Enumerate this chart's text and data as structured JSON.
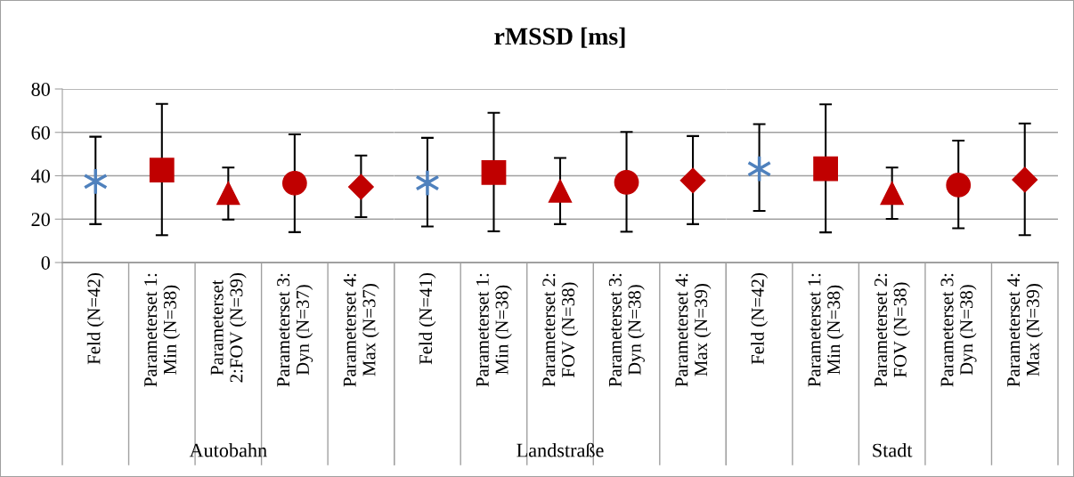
{
  "chart_data": [
    {
      "type": "scatter",
      "xlabel": "Autobahn",
      "categories": [
        "Feld (N=42)",
        "Parameterset 1:\nMin (N=38)",
        "Parameterset\n2:FOV (N=39)",
        "Parameterset 3:\nDyn (N=37)",
        "Parameterset 4:\nMax (N=37)"
      ],
      "ylim": [
        0,
        80
      ],
      "yticks": [
        0,
        20,
        40,
        60,
        80
      ],
      "grid": "y",
      "legend": false,
      "series": [
        {
          "color": "#4f81bd",
          "marker": "cross",
          "values": [
            37.4,
            null,
            null,
            null,
            null
          ],
          "errors": [
            [
              17.7,
              58.0
            ],
            null,
            null,
            null,
            null
          ]
        },
        {
          "color": "#c00000",
          "marker": "square",
          "values": [
            null,
            42.6,
            null,
            null,
            null
          ],
          "errors": [
            null,
            [
              12.6,
              73.1
            ],
            null,
            null,
            null
          ]
        },
        {
          "color": "#c00000",
          "marker": "triangle",
          "values": [
            null,
            null,
            32.0,
            null,
            null
          ],
          "errors": [
            null,
            null,
            [
              19.8,
              43.8
            ],
            null,
            null
          ]
        },
        {
          "color": "#c00000",
          "marker": "circle",
          "values": [
            null,
            null,
            null,
            36.6,
            null
          ],
          "errors": [
            null,
            null,
            null,
            [
              14.0,
              59.1
            ],
            null
          ]
        },
        {
          "color": "#c00000",
          "marker": "diamond",
          "values": [
            null,
            null,
            null,
            null,
            34.9
          ],
          "errors": [
            null,
            null,
            null,
            null,
            [
              20.9,
              49.3
            ]
          ]
        }
      ]
    },
    {
      "type": "scatter",
      "title": "rMSSD [ms]",
      "xlabel": "Landstraße",
      "categories": [
        "Feld (N=41)",
        "Parameterset 1:\nMin (N=38)",
        "Parameterset 2:\nFOV (N=38)",
        "Parameterset 3:\nDyn (N=38)",
        "Parameterset 4:\nMax (N=39)"
      ],
      "ylim": [
        0,
        80
      ],
      "yticks": [
        0,
        20,
        40,
        60,
        80
      ],
      "grid": "y",
      "legend": false,
      "tick_labels": "x",
      "series": [
        {
          "color": "#4f81bd",
          "marker": "cross",
          "values": [
            36.7,
            null,
            null,
            null,
            null
          ],
          "errors": [
            [
              16.6,
              57.5
            ],
            null,
            null,
            null,
            null
          ]
        },
        {
          "color": "#c00000",
          "marker": "square",
          "values": [
            null,
            41.5,
            null,
            null,
            null
          ],
          "errors": [
            null,
            [
              14.4,
              69.0
            ],
            null,
            null,
            null
          ]
        },
        {
          "color": "#c00000",
          "marker": "triangle",
          "values": [
            null,
            null,
            33.0,
            null,
            null
          ],
          "errors": [
            null,
            null,
            [
              17.7,
              48.2
            ],
            null,
            null
          ]
        },
        {
          "color": "#c00000",
          "marker": "circle",
          "values": [
            null,
            null,
            null,
            37.0,
            null
          ],
          "errors": [
            null,
            null,
            null,
            [
              14.2,
              60.2
            ],
            null
          ]
        },
        {
          "color": "#c00000",
          "marker": "diamond",
          "values": [
            null,
            null,
            null,
            null,
            37.8
          ],
          "errors": [
            null,
            null,
            null,
            null,
            [
              17.7,
              58.3
            ]
          ]
        }
      ]
    },
    {
      "type": "scatter",
      "xlabel": "Stadt",
      "categories": [
        "Feld (N=42)",
        "Parameterset 1:\nMin (N=38)",
        "Parameterset 2:\nFOV (N=38)",
        "Parameterset 3:\nDyn (N=38)",
        "Parameterset 4:\nMax (N=39)"
      ],
      "ylim": [
        0,
        80
      ],
      "yticks": [
        0,
        20,
        40,
        60,
        80
      ],
      "grid": "y",
      "legend": false,
      "tick_labels": "x",
      "series": [
        {
          "color": "#4f81bd",
          "marker": "cross",
          "values": [
            43.2,
            null,
            null,
            null,
            null
          ],
          "errors": [
            [
              23.8,
              63.8
            ],
            null,
            null,
            null,
            null
          ]
        },
        {
          "color": "#c00000",
          "marker": "square",
          "values": [
            null,
            43.2,
            null,
            null,
            null
          ],
          "errors": [
            null,
            [
              13.9,
              72.9
            ],
            null,
            null,
            null
          ]
        },
        {
          "color": "#c00000",
          "marker": "triangle",
          "values": [
            null,
            null,
            32.0,
            null,
            null
          ],
          "errors": [
            null,
            null,
            [
              20.1,
              43.8
            ],
            null,
            null
          ]
        },
        {
          "color": "#c00000",
          "marker": "circle",
          "values": [
            null,
            null,
            null,
            35.7,
            null
          ],
          "errors": [
            null,
            null,
            null,
            [
              15.8,
              56.2
            ],
            null
          ]
        },
        {
          "color": "#c00000",
          "marker": "diamond",
          "values": [
            null,
            null,
            null,
            null,
            38.2
          ],
          "errors": [
            null,
            null,
            null,
            null,
            [
              12.6,
              64.1
            ]
          ]
        }
      ]
    }
  ]
}
